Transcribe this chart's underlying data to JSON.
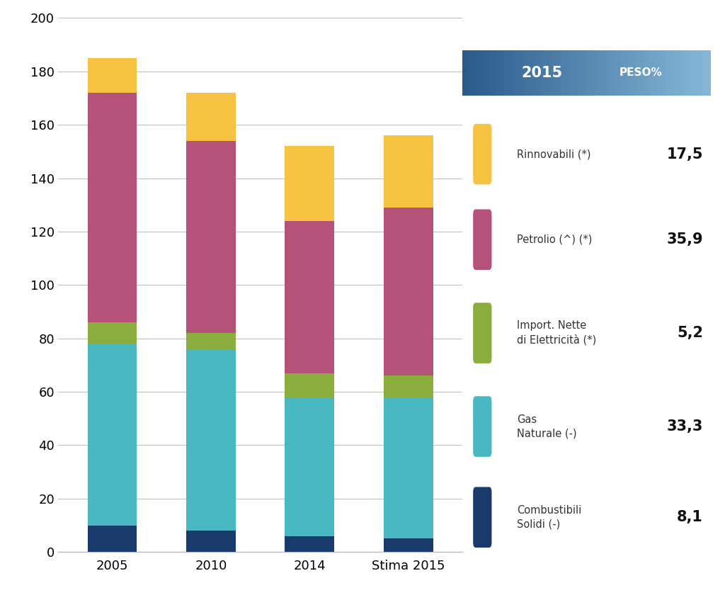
{
  "categories": [
    "2005",
    "2010",
    "2014",
    "Stima 2015"
  ],
  "segments": {
    "Combustibili Solidi": {
      "values": [
        10,
        8,
        6,
        5
      ],
      "color": "#1a3a6b"
    },
    "Gas Naturale": {
      "values": [
        68,
        68,
        52,
        53
      ],
      "color": "#4ab8c1"
    },
    "Import. Nette di Elettricita": {
      "values": [
        8,
        6,
        9,
        8
      ],
      "color": "#8aad3e"
    },
    "Petrolio": {
      "values": [
        86,
        72,
        57,
        63
      ],
      "color": "#b5527a"
    },
    "Rinnovabili": {
      "values": [
        13,
        18,
        28,
        27
      ],
      "color": "#f5c242"
    }
  },
  "legend_items": [
    {
      "label": "Rinnovabili (*)",
      "value": "17,5",
      "color": "#f5c242"
    },
    {
      "label": "Petrolio (^) (*)",
      "value": "35,9",
      "color": "#b5527a"
    },
    {
      "label": "Import. Nette\ndi Elettricità (*)",
      "value": "5,2",
      "color": "#8aad3e"
    },
    {
      "label": "Gas\nNaturale (-)",
      "value": "33,3",
      "color": "#4ab8c1"
    },
    {
      "label": "Combustibili\nSolidi (-)",
      "value": "8,1",
      "color": "#1a3a6b"
    }
  ],
  "segment_order": [
    "Combustibili Solidi",
    "Gas Naturale",
    "Import. Nette di Elettricita",
    "Petrolio",
    "Rinnovabili"
  ],
  "ylim": [
    0,
    200
  ],
  "yticks": [
    0,
    20,
    40,
    60,
    80,
    100,
    120,
    140,
    160,
    180,
    200
  ],
  "background_color": "#ffffff",
  "bar_width": 0.5,
  "grid_color": "#bbbbbb",
  "tick_label_size": 13,
  "legend_header_color1": "#2a5a8a",
  "legend_header_color2": "#88b8d8"
}
